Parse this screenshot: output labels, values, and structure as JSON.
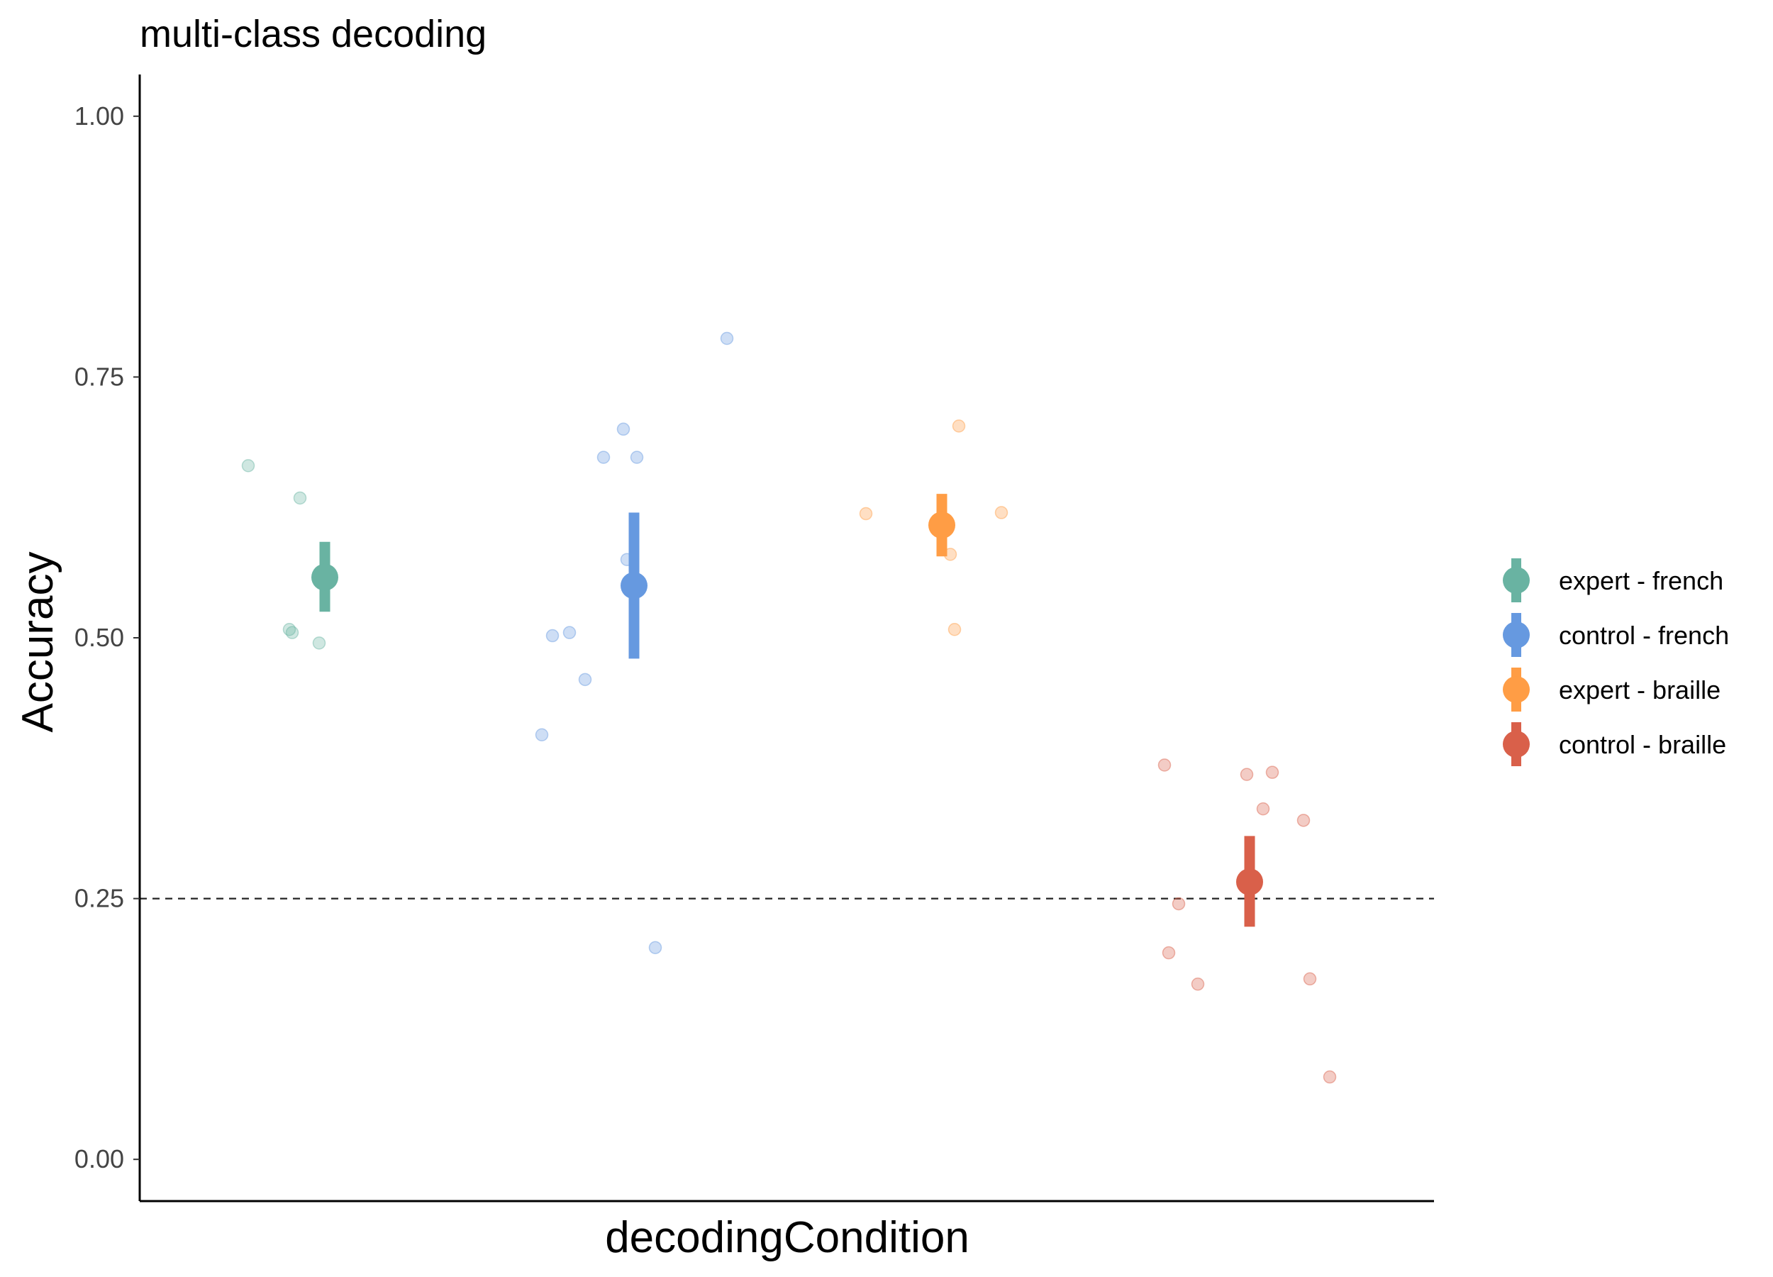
{
  "chart_data": {
    "type": "scatter",
    "title": "multi-class decoding",
    "xlabel": "decodingCondition",
    "ylabel": "Accuracy",
    "ylim": [
      -0.04,
      1.04
    ],
    "yticks": [
      0.0,
      0.25,
      0.5,
      0.75,
      1.0
    ],
    "ytick_labels": [
      "0.00",
      "0.25",
      "0.50",
      "0.75",
      "1.00"
    ],
    "chance_line": 0.25,
    "grid": false,
    "legend_position": "right",
    "series": [
      {
        "name": "expert - french",
        "color": "#69b3a2",
        "mean": 0.558,
        "ci": [
          0.525,
          0.592
        ],
        "points": [
          0.665,
          0.634,
          0.508,
          0.505,
          0.495
        ]
      },
      {
        "name": "control - french",
        "color": "#6699e0",
        "mean": 0.55,
        "ci": [
          0.48,
          0.62
        ],
        "points": [
          0.502,
          0.505,
          0.407,
          0.46,
          0.673,
          0.7,
          0.575,
          0.673,
          0.203,
          0.787
        ]
      },
      {
        "name": "expert - braille",
        "color": "#ff9d45",
        "mean": 0.608,
        "ci": [
          0.578,
          0.638
        ],
        "points": [
          0.619,
          0.703,
          0.58,
          0.508,
          0.62
        ]
      },
      {
        "name": "control - braille",
        "color": "#d9604a",
        "mean": 0.266,
        "ci": [
          0.223,
          0.31
        ],
        "points": [
          0.378,
          0.245,
          0.198,
          0.168,
          0.369,
          0.336,
          0.371,
          0.079,
          0.325,
          0.173
        ]
      }
    ]
  }
}
